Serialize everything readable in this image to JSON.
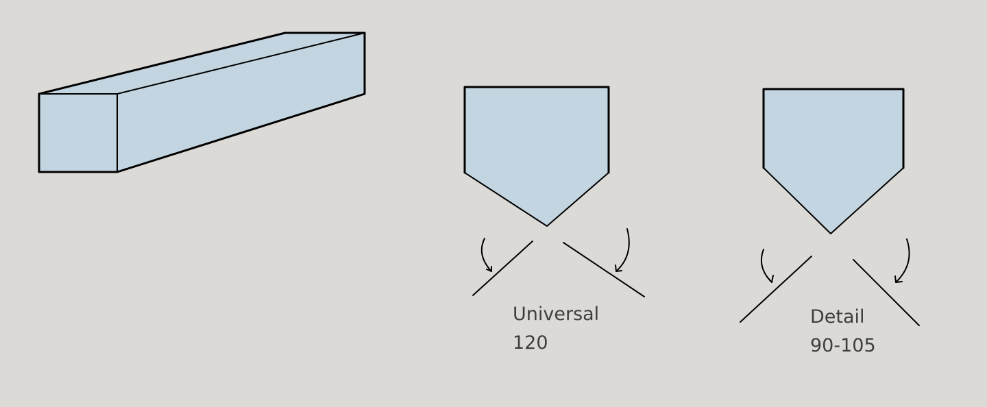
{
  "colors": {
    "background": "#dcdad6",
    "face": "#c3d5e0",
    "stroke": "#000000",
    "text": "#3e3e3e"
  },
  "profiles": [
    {
      "name": "Universal",
      "angle": "120"
    },
    {
      "name": "Detail",
      "angle": "90-105"
    }
  ]
}
